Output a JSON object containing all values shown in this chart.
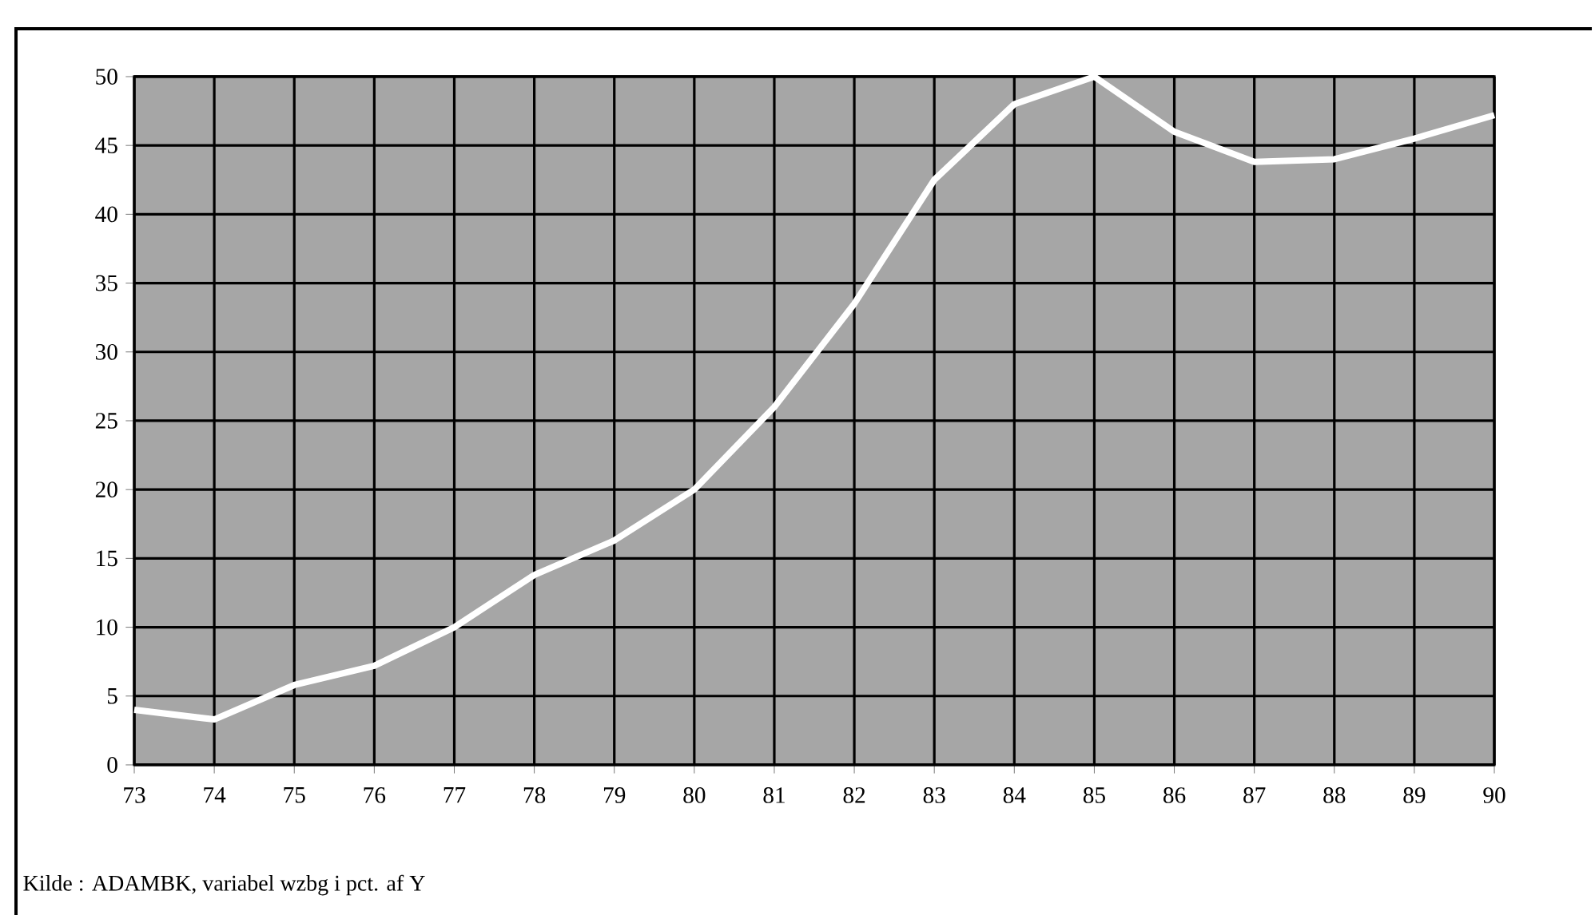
{
  "chart_data": {
    "type": "line",
    "x": [
      73,
      74,
      75,
      76,
      77,
      78,
      79,
      80,
      81,
      82,
      83,
      84,
      85,
      86,
      87,
      88,
      89,
      90
    ],
    "series": [
      {
        "color": "#ffffff",
        "values": [
          4,
          3.3,
          5.8,
          7.2,
          10,
          13.8,
          16.3,
          20,
          26,
          33.5,
          42.5,
          48,
          50,
          46,
          43.8,
          44,
          45.5,
          47.2
        ]
      }
    ],
    "xlim": [
      73,
      90
    ],
    "xticks": [
      73,
      74,
      75,
      76,
      77,
      78,
      79,
      80,
      81,
      82,
      83,
      84,
      85,
      86,
      87,
      88,
      89,
      90
    ],
    "ylim": [
      0,
      50
    ],
    "yticks": [
      0,
      5,
      10,
      15,
      20,
      25,
      30,
      35,
      40,
      45,
      50
    ],
    "grid": true,
    "marker": "none",
    "line_style": "solid",
    "annotations": [
      "Kilde : ADAMBK, variabel wzbg i pct. af Y"
    ]
  }
}
